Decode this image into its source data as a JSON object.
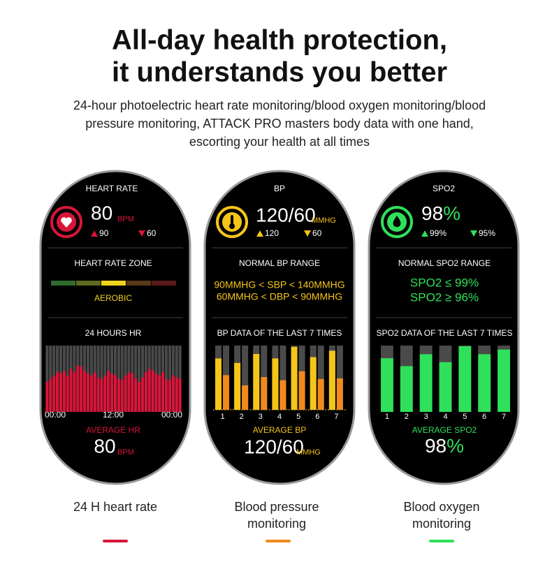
{
  "header": {
    "title_lines": [
      "All-day health protection,",
      "it understands you better"
    ],
    "subtitle_lines": [
      "24-hour photoelectric heart rate monitoring/blood oxygen monitoring/blood",
      "pressure monitoring, ATTACK PRO masters body data with one hand,",
      "escorting your health at all times"
    ]
  },
  "heart_rate": {
    "title": "HEART RATE",
    "value": "80",
    "unit": "BPM",
    "high": "90",
    "low": "60",
    "section_title": "HEART RATE ZONE",
    "zone": "AEROBIC",
    "chart_title": "24 HOURS HR",
    "x_labels": [
      "00:00",
      "12:00",
      "00:00"
    ],
    "chart": {
      "type": "bar",
      "color": "#d8163a",
      "values": [
        45,
        50,
        55,
        60,
        58,
        62,
        55,
        65,
        60,
        70,
        68,
        62,
        58,
        55,
        60,
        52,
        50,
        55,
        62,
        58,
        55,
        50,
        48,
        55,
        60,
        58,
        50,
        45,
        52,
        60,
        65,
        62,
        58,
        55,
        60,
        50,
        48,
        55,
        52,
        50
      ]
    },
    "average_title": "AVERAGE HR",
    "average_value": "80",
    "average_unit": "BPM"
  },
  "blood_pressure": {
    "title": "BP",
    "value": "120/60",
    "unit": "MMHG",
    "high": "120",
    "low": "60",
    "section_title": "NORMAL BP RANGE",
    "range_lines": [
      "90MMHG < SBP < 140MMHG",
      "60MMHG < DBP < 90MMHG"
    ],
    "chart_title": "BP DATA OF THE LAST 7 TIMES",
    "chart": {
      "type": "bar",
      "categories": [
        "1",
        "2",
        "3",
        "4",
        "5",
        "6",
        "7"
      ],
      "series": [
        {
          "color": "#f5c518",
          "values": [
            80,
            73,
            87,
            80,
            98,
            82,
            92
          ]
        },
        {
          "color": "#f08a1c",
          "values": [
            54,
            38,
            51,
            46,
            60,
            48,
            49
          ]
        }
      ]
    },
    "average_title": "AVERAGE BP",
    "average_value": "120/60",
    "average_unit": "MMHG"
  },
  "spo2": {
    "title": "SPO2",
    "value": "98",
    "unit": "%",
    "high": "99%",
    "low": "95%",
    "section_title": "NORMAL SPO2 RANGE",
    "range_lines": [
      "SPO2 ≤ 99%",
      "SPO2 ≥ 96%"
    ],
    "chart_title": "SPO2 DATA OF THE LAST 7 TIMES",
    "chart": {
      "type": "bar",
      "color": "#2fe05a",
      "categories": [
        "1",
        "2",
        "3",
        "4",
        "5",
        "6",
        "7"
      ],
      "values": [
        81,
        69,
        87,
        75,
        99,
        87,
        94
      ]
    },
    "average_title": "AVERAGE SPO2",
    "average_value": "98",
    "average_unit": "%"
  },
  "footer": {
    "captions": [
      [
        "24 H heart rate"
      ],
      [
        "Blood pressure",
        "monitoring"
      ],
      [
        "Blood oxygen",
        "monitoring"
      ]
    ]
  }
}
